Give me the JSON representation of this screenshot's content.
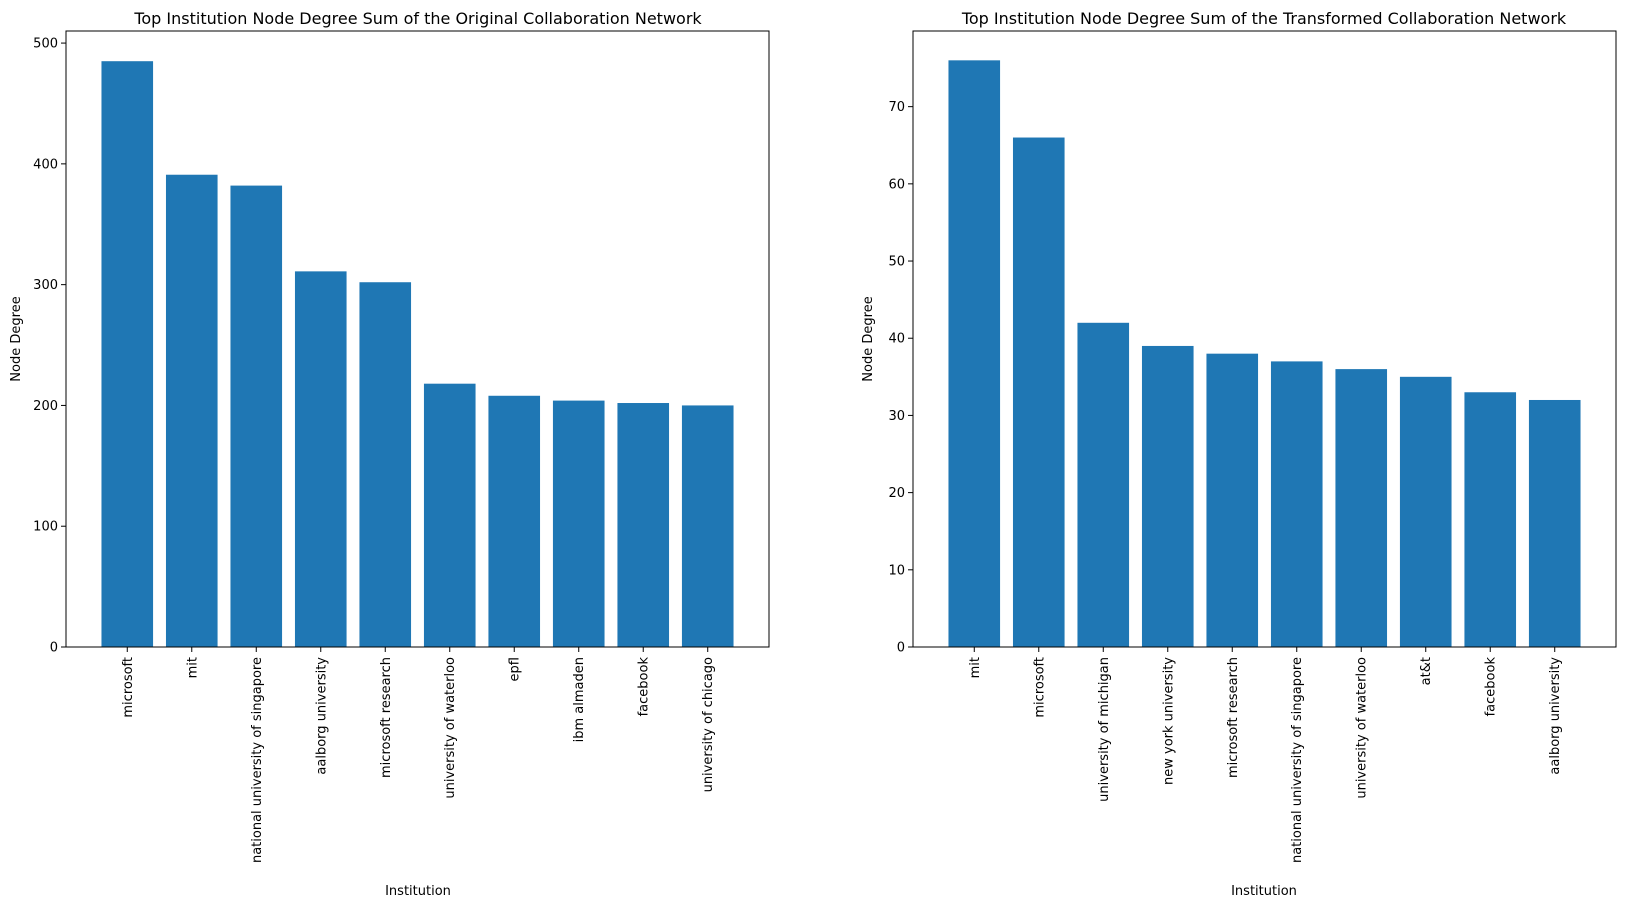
{
  "chart_data": [
    {
      "type": "bar",
      "title": "Top Institution Node Degree Sum of the Original Collaboration Network",
      "xlabel": "Institution",
      "ylabel": "Node Degree",
      "ylim": [
        0,
        510
      ],
      "yticks": [
        0,
        100,
        200,
        300,
        400,
        500
      ],
      "categories": [
        "microsoft",
        "mit",
        "national university of singapore",
        "aalborg university",
        "microsoft research",
        "university of waterloo",
        "epfl",
        "ibm almaden",
        "facebook",
        "university of chicago"
      ],
      "values": [
        485,
        391,
        382,
        311,
        302,
        218,
        208,
        204,
        202,
        200
      ],
      "color": "#1f77b4",
      "grid": false
    },
    {
      "type": "bar",
      "title": "Top Institution Node Degree Sum of the Transformed Collaboration Network",
      "xlabel": "Institution",
      "ylabel": "Node Degree",
      "ylim": [
        0,
        79.8
      ],
      "yticks": [
        0,
        10,
        20,
        30,
        40,
        50,
        60,
        70
      ],
      "categories": [
        "mit",
        "microsoft",
        "university of michigan",
        "new york university",
        "microsoft research",
        "national university of singapore",
        "university of waterloo",
        "at&t",
        "facebook",
        "aalborg university"
      ],
      "values": [
        76,
        66,
        42,
        39,
        38,
        37,
        36,
        35,
        33,
        32
      ],
      "color": "#1f77b4",
      "grid": false
    }
  ]
}
